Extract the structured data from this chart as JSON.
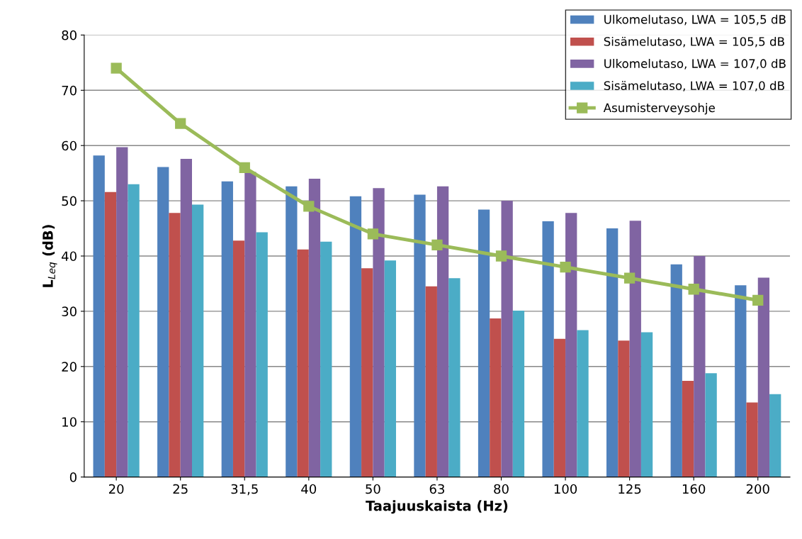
{
  "chart_data": {
    "type": "bar",
    "xlabel": "Taajuuskaista (Hz)",
    "ylabel": "L$_{Leq}$ (dB)",
    "categories": [
      "20",
      "25",
      "31,5",
      "40",
      "50",
      "63",
      "80",
      "100",
      "125",
      "160",
      "200"
    ],
    "series": [
      {
        "name": "Ulkomelutaso, LWA = 105,5 dB",
        "color": "#4f81bd",
        "values": [
          58.2,
          56.1,
          53.5,
          52.6,
          50.8,
          51.1,
          48.4,
          46.3,
          45.0,
          38.5,
          34.7
        ]
      },
      {
        "name": "Sisämelutaso, LWA = 105,5 dB",
        "color": "#c0504d",
        "values": [
          51.6,
          47.8,
          42.8,
          41.2,
          37.8,
          34.5,
          28.7,
          25.0,
          24.7,
          17.4,
          13.5
        ]
      },
      {
        "name": "Ulkomelutaso, LWA = 107,0 dB",
        "color": "#8064a2",
        "values": [
          59.7,
          57.6,
          55.2,
          54.0,
          52.3,
          52.6,
          50.0,
          47.8,
          46.4,
          40.0,
          36.1
        ]
      },
      {
        "name": "Sisämelutaso, LWA = 107,0 dB",
        "color": "#4bacc6",
        "values": [
          53.0,
          49.3,
          44.3,
          42.6,
          39.2,
          36.0,
          30.1,
          26.6,
          26.2,
          18.8,
          15.0
        ]
      },
      {
        "name": "Asumisterveysohje",
        "color": "#9bbb59",
        "type": "line",
        "marker": "square",
        "values": [
          74,
          64,
          56,
          49,
          44,
          42,
          40,
          38,
          36,
          34,
          32
        ]
      }
    ],
    "ylim": [
      0,
      80
    ],
    "yticks": [
      0,
      10,
      20,
      30,
      40,
      50,
      60,
      70,
      80
    ],
    "grid": "y",
    "legend": "top right"
  }
}
